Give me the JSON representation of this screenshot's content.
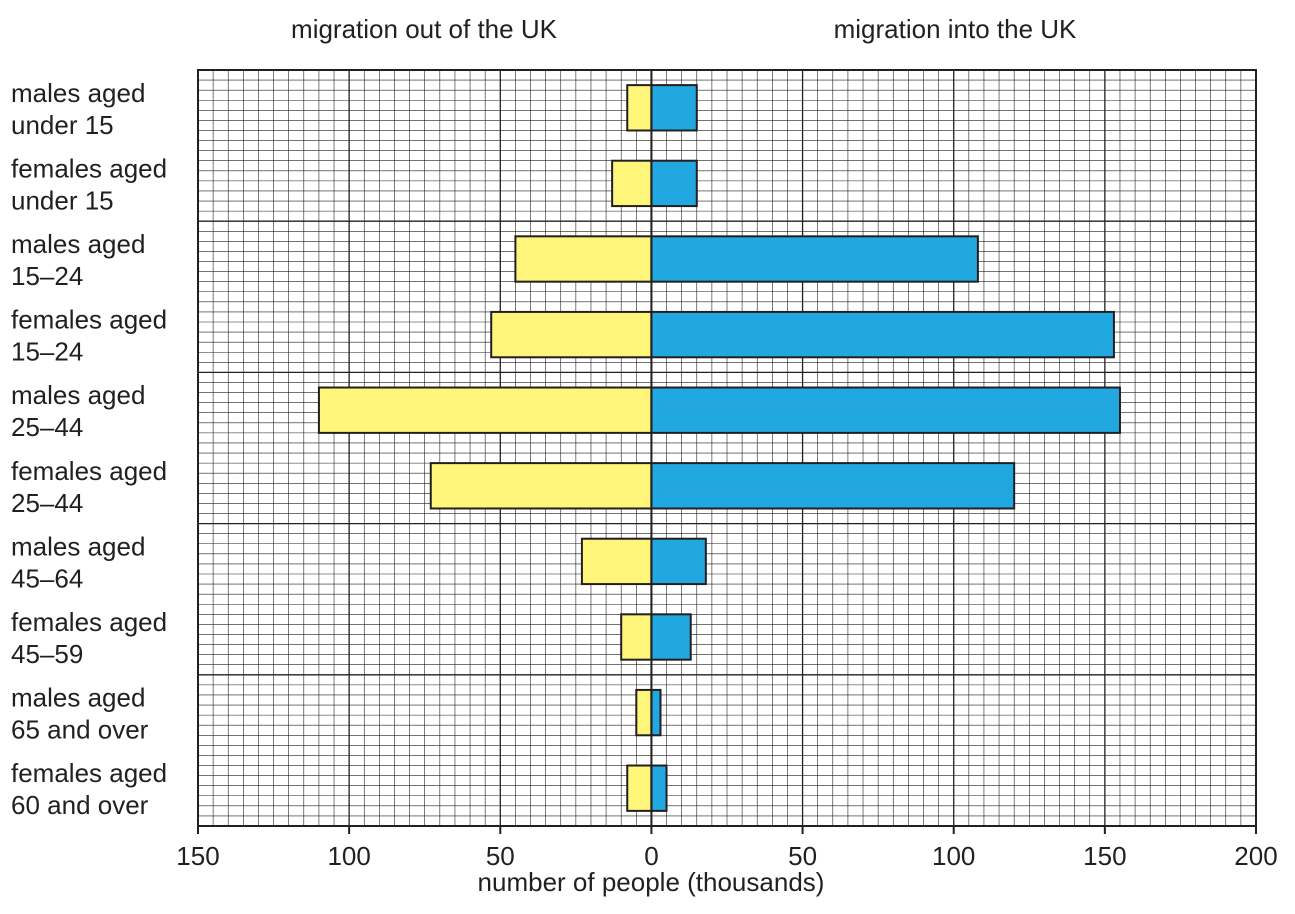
{
  "chart_data": {
    "type": "bar",
    "orientation": "horizontal",
    "layout": "population-pyramid",
    "headings": {
      "left": "migration out of the UK",
      "right": "migration into the UK"
    },
    "xlabel": "number of people (thousands)",
    "ylabel": "",
    "xlim": [
      -150,
      200
    ],
    "x_ticks": [
      {
        "value": -150,
        "label": "150"
      },
      {
        "value": -100,
        "label": "100"
      },
      {
        "value": -50,
        "label": "50"
      },
      {
        "value": 0,
        "label": "0"
      },
      {
        "value": 50,
        "label": "50"
      },
      {
        "value": 100,
        "label": "100"
      },
      {
        "value": 150,
        "label": "150"
      },
      {
        "value": 200,
        "label": "200"
      }
    ],
    "grid": true,
    "categories": [
      [
        "males aged",
        "under 15"
      ],
      [
        "females aged",
        "under 15"
      ],
      [
        "males aged",
        "15–24"
      ],
      [
        "females aged",
        "15–24"
      ],
      [
        "males aged",
        "25–44"
      ],
      [
        "females aged",
        "25–44"
      ],
      [
        "males aged",
        "45–64"
      ],
      [
        "females aged",
        "45–59"
      ],
      [
        "males aged",
        "65 and over"
      ],
      [
        "females aged",
        "60 and over"
      ]
    ],
    "series": [
      {
        "key": "out",
        "values": [
          8,
          13,
          45,
          53,
          110,
          73,
          23,
          10,
          5,
          8
        ],
        "color": "#fff57a"
      },
      {
        "key": "in",
        "values": [
          15,
          15,
          108,
          153,
          155,
          120,
          18,
          13,
          3,
          5
        ],
        "color": "#22a8e0"
      }
    ]
  }
}
